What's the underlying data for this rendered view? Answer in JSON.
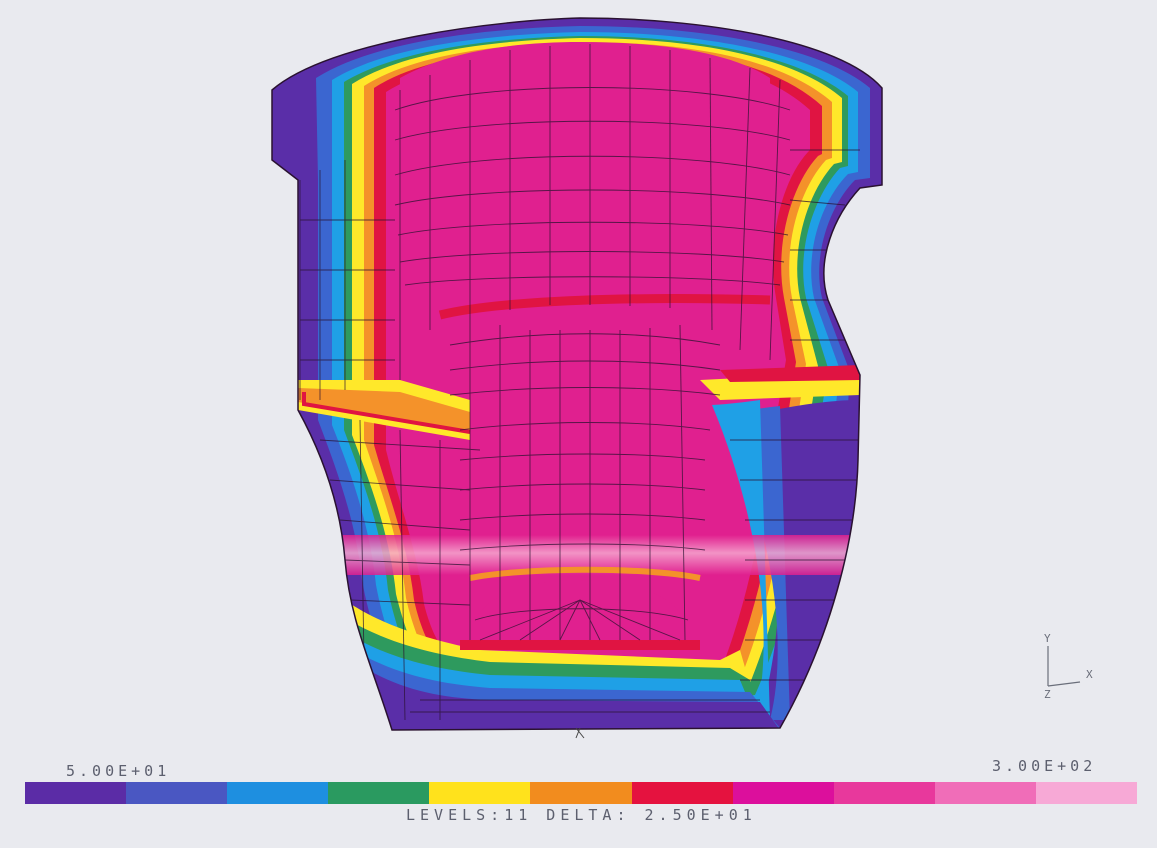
{
  "legend": {
    "min_label": "5.00E+01",
    "max_label": "3.00E+02",
    "levels_text": "LEVELS:11 DELTA: 2.50E+01",
    "levels": 11,
    "colors": [
      "#5b2ca6",
      "#4a57c2",
      "#1e8fe0",
      "#2a9a60",
      "#ffe21c",
      "#f28c1e",
      "#e5123f",
      "#dc0f9c",
      "#e8389c",
      "#f06db8",
      "#f7a9d6"
    ]
  },
  "triad": {
    "x_label": "X",
    "y_label": "Y",
    "z_label": "Z"
  },
  "part_colors": {
    "violet": "#5a2ea8",
    "blue": "#3b66d0",
    "cyan": "#1fa0e6",
    "green": "#2e9a5e",
    "yellow": "#ffe82a",
    "orange": "#f4922a",
    "red": "#e01442",
    "magenta": "#e0208f",
    "pink": "#f6a8cf",
    "mesh": "#2a1230"
  }
}
